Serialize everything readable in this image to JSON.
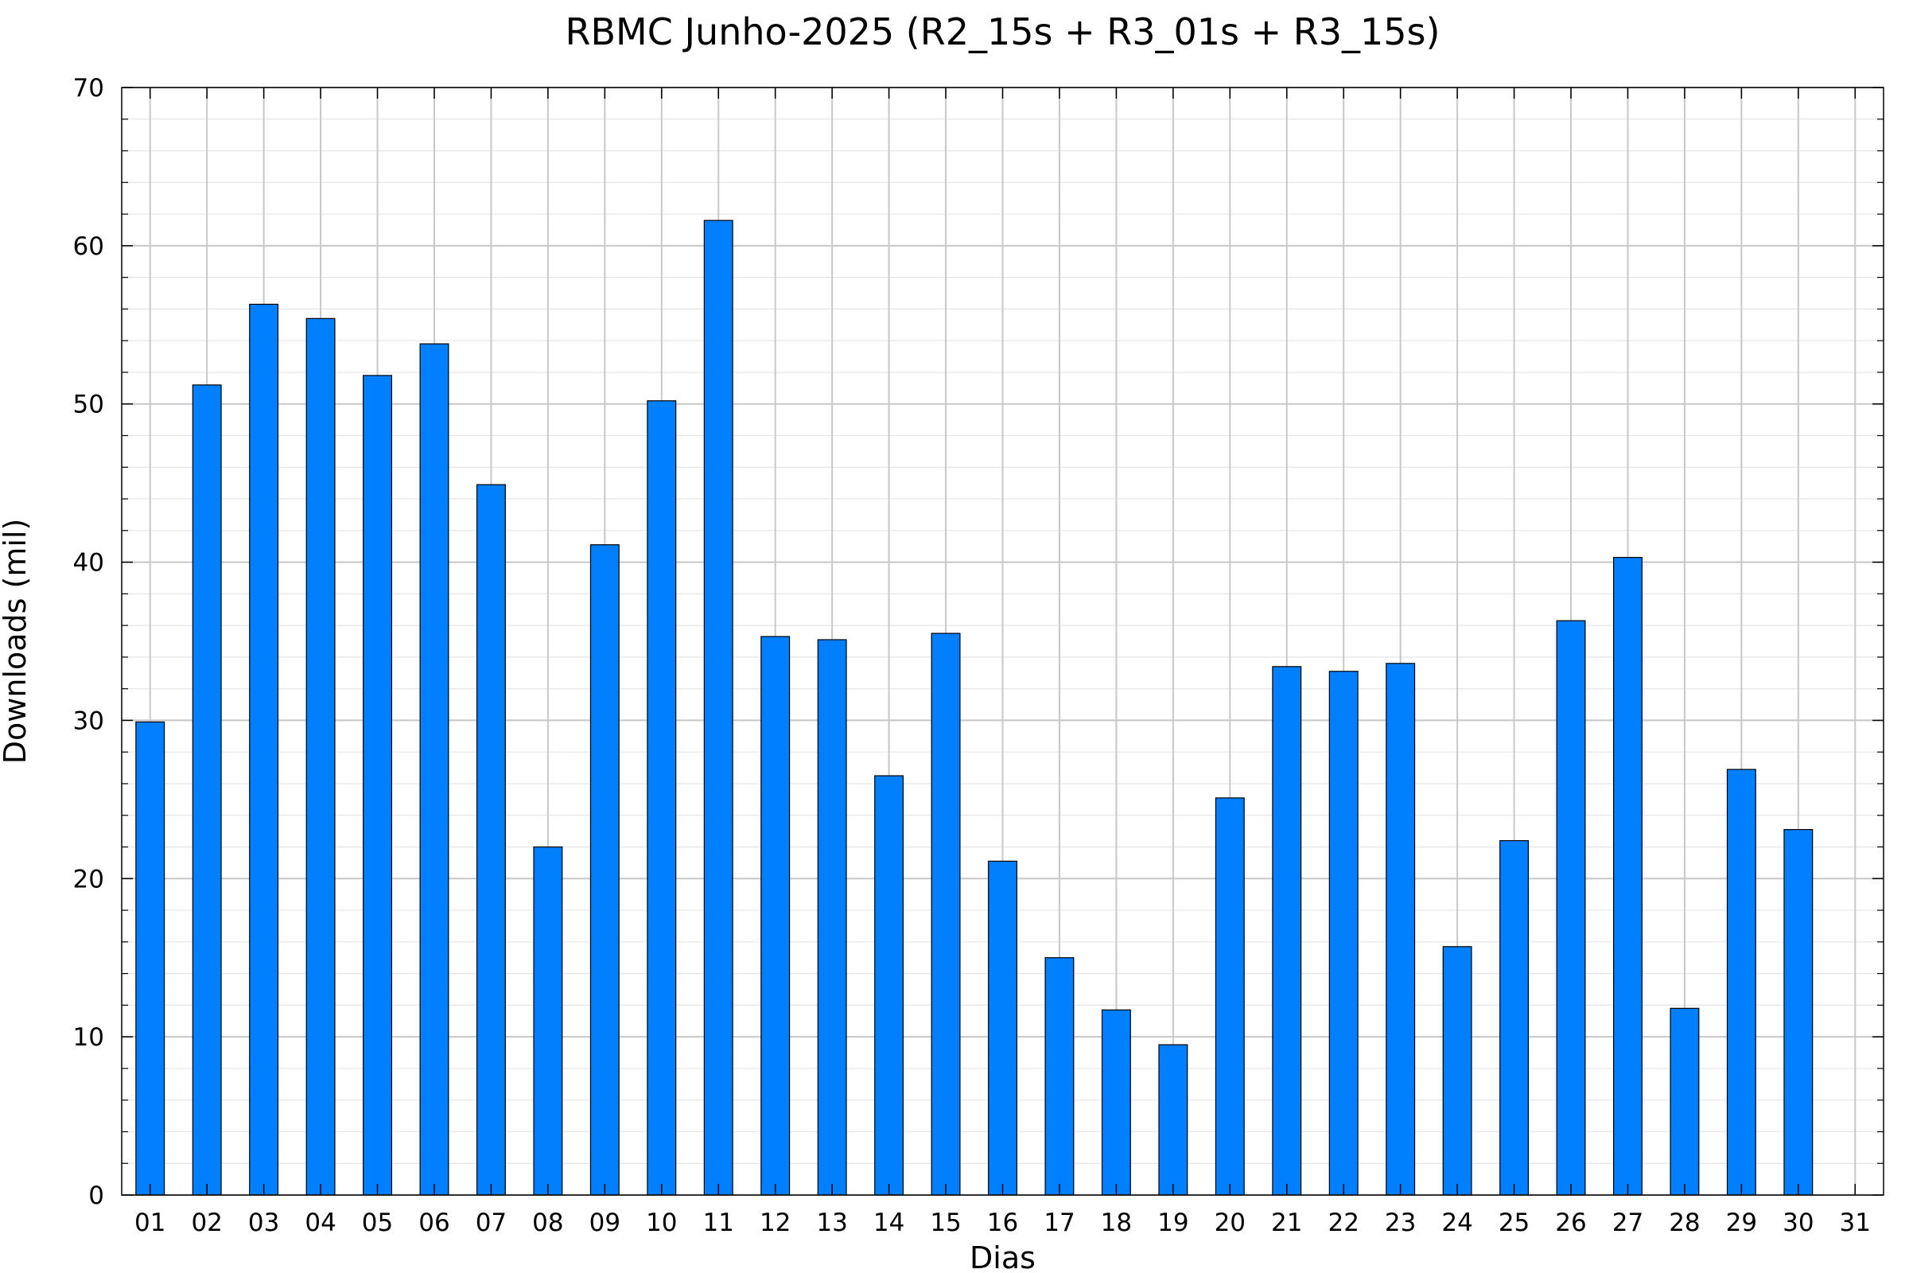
{
  "chart_data": {
    "type": "bar",
    "title": "RBMC Junho-2025 (R2_15s + R3_01s + R3_15s)",
    "xlabel": "Dias",
    "ylabel": "Downloads (mil)",
    "categories": [
      "01",
      "02",
      "03",
      "04",
      "05",
      "06",
      "07",
      "08",
      "09",
      "10",
      "11",
      "12",
      "13",
      "14",
      "15",
      "16",
      "17",
      "18",
      "19",
      "20",
      "21",
      "22",
      "23",
      "24",
      "25",
      "26",
      "27",
      "28",
      "29",
      "30",
      "31"
    ],
    "values": [
      29.9,
      51.2,
      56.3,
      55.4,
      51.8,
      53.8,
      44.9,
      22.0,
      41.1,
      50.2,
      61.6,
      35.3,
      35.1,
      26.5,
      35.5,
      21.1,
      15.0,
      11.7,
      9.5,
      25.1,
      33.4,
      33.1,
      33.6,
      15.7,
      22.4,
      36.3,
      40.3,
      11.8,
      26.9,
      23.1,
      null
    ],
    "ylim": [
      0,
      70
    ],
    "yticks": [
      0,
      10,
      20,
      30,
      40,
      50,
      60,
      70
    ],
    "yticks_labels": [
      "0",
      "10",
      "20",
      "30",
      "40",
      "50",
      "60",
      "70"
    ],
    "grid": true,
    "bar_color": "#007fff",
    "bar_edge_color": "#000000",
    "grid_major_color": "#c8c8c8",
    "grid_minor_color": "#e6e6e6"
  }
}
